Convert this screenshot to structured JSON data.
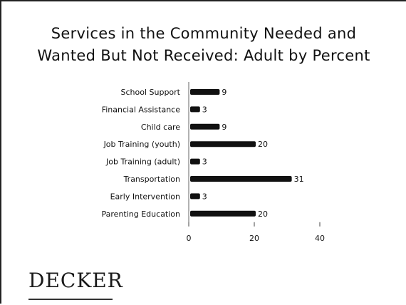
{
  "slide": {
    "title_line1": "Services in the Community Needed and",
    "title_line2": "Wanted But Not Received: Adult by Percent",
    "logo_text": "DECKER"
  },
  "chart_data": {
    "type": "bar",
    "orientation": "horizontal",
    "title": "Services in the Community Needed and Wanted But Not Received: Adult by Percent",
    "xlabel": "",
    "ylabel": "",
    "categories": [
      "School Support",
      "Financial Assistance",
      "Child care",
      "Job Training (youth)",
      "Job Training (adult)",
      "Transportation",
      "Early Intervention",
      "Parenting Education"
    ],
    "values": [
      9,
      3,
      9,
      20,
      3,
      31,
      3,
      20
    ],
    "xlim": [
      0,
      40
    ],
    "xticks": [
      0,
      20,
      40
    ],
    "data_labels": true,
    "grid": false,
    "legend": "none",
    "bar_color": "#111111"
  }
}
